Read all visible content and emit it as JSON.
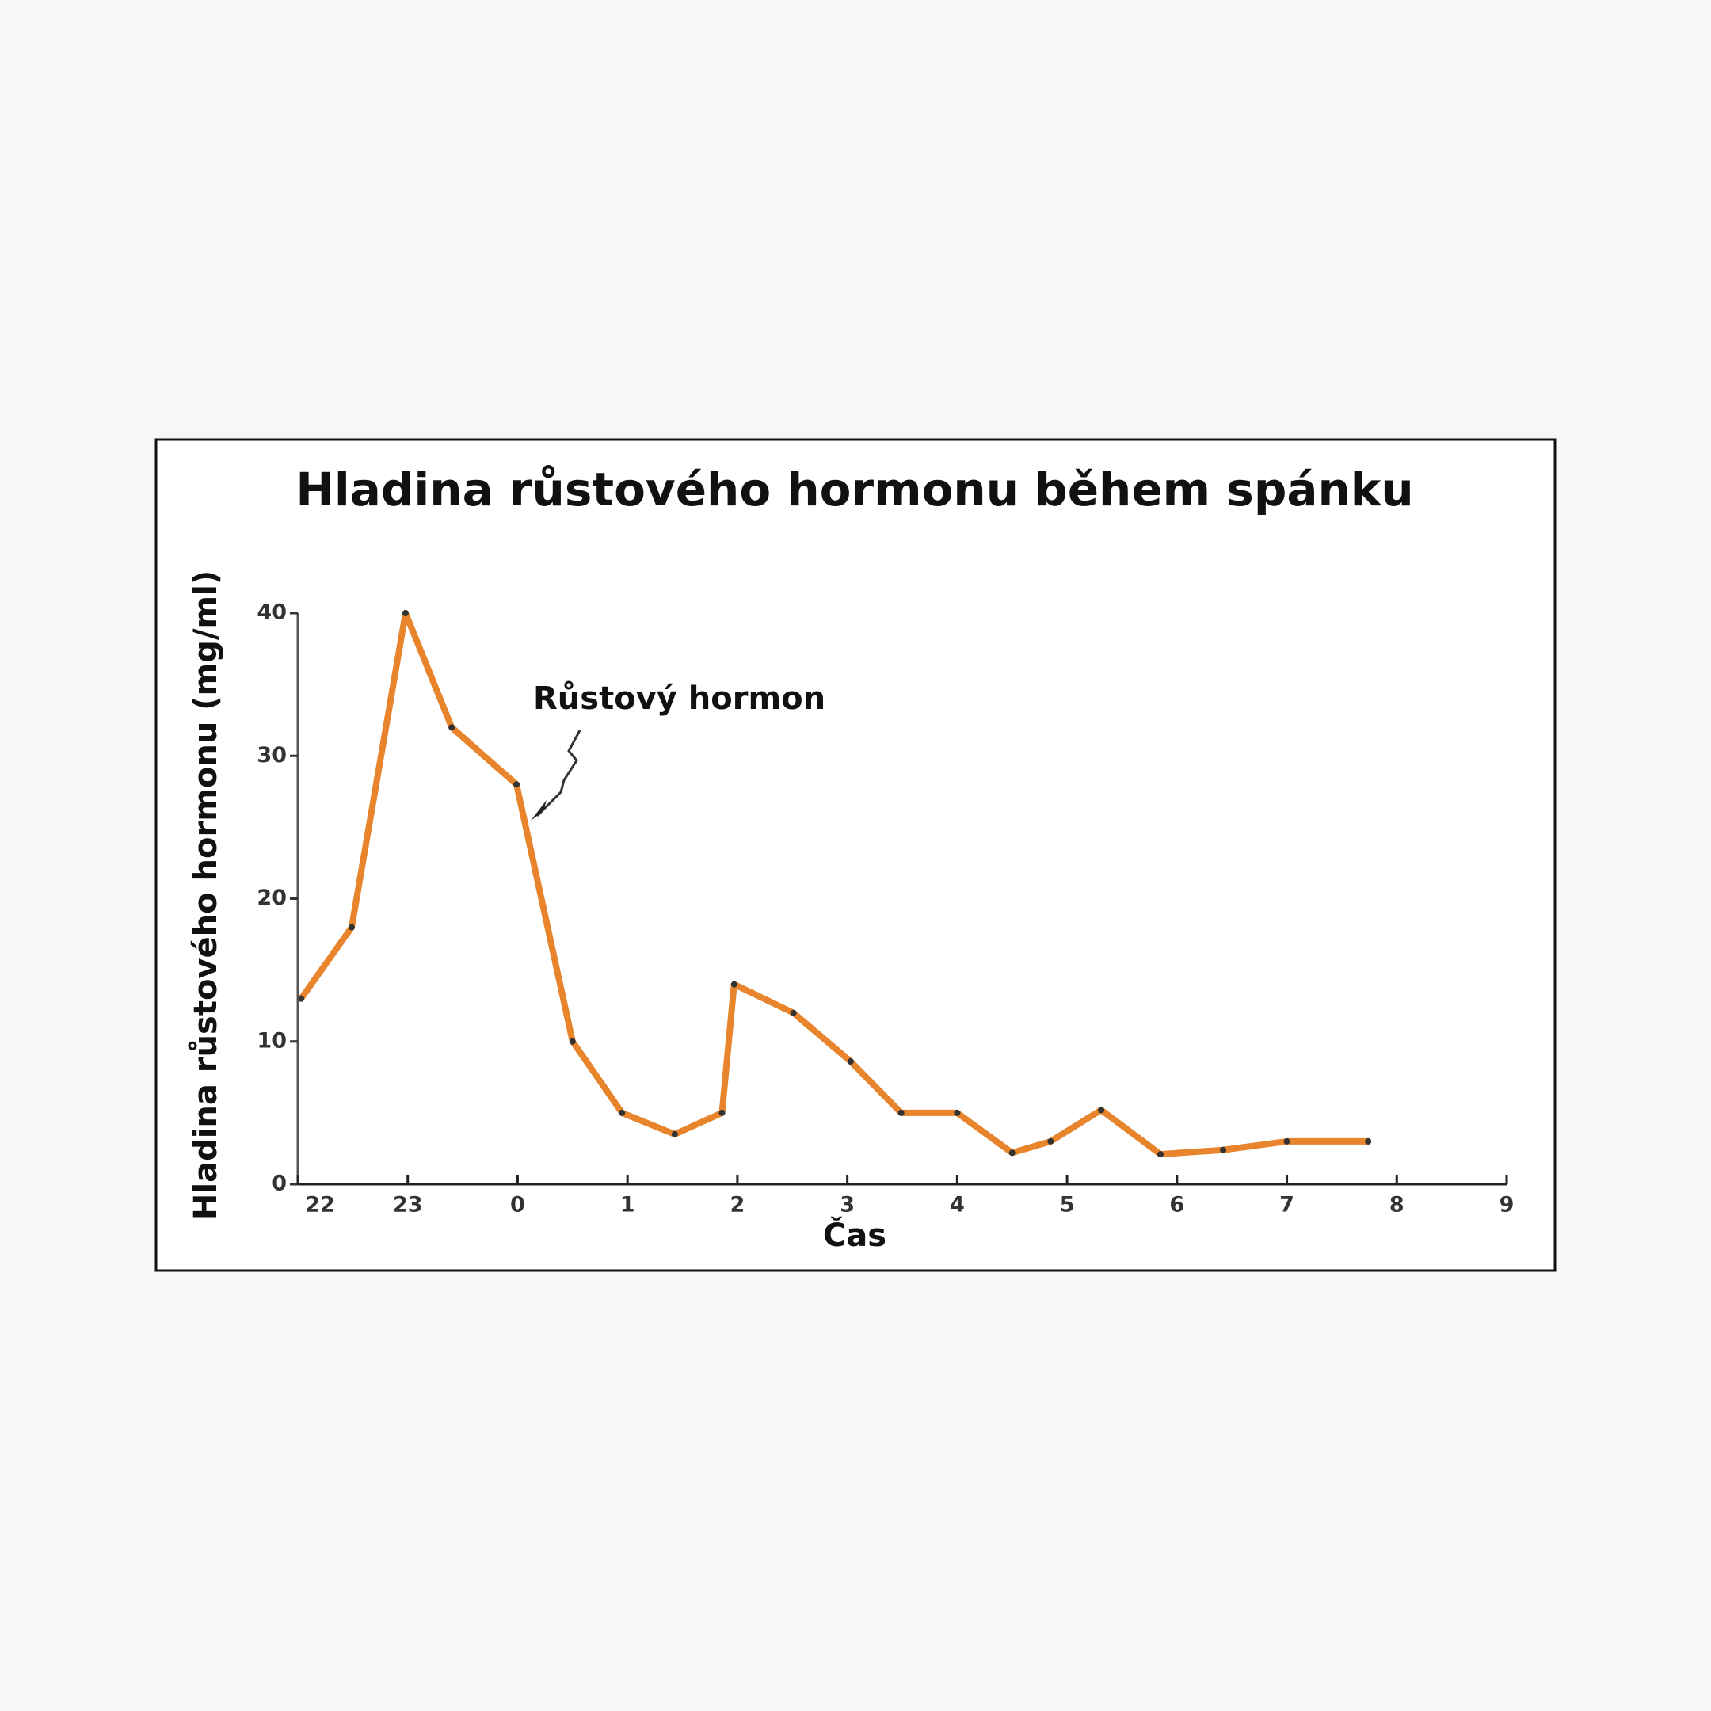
{
  "chart_data": {
    "type": "line",
    "title": "Hladina růstového hormonu během spánku",
    "x_label": "Čas",
    "y_label": "Hladina růstového hormonu (mg/ml)",
    "annotation": "Růstový hormon",
    "color": "#e8842c",
    "x": [
      22.03,
      22.49,
      22.98,
      23.4,
      23.99,
      24.5,
      24.95,
      25.43,
      25.86,
      25.97,
      26.51,
      27.03,
      27.49,
      28.0,
      28.5,
      28.85,
      29.31,
      29.85,
      30.42,
      31.0,
      31.74
    ],
    "values": [
      13,
      18,
      40,
      32,
      28,
      10,
      5,
      3.5,
      5,
      14,
      12,
      8.6,
      5,
      5,
      2.2,
      3,
      5.2,
      2.1,
      2.4,
      3,
      3
    ],
    "xlim": [
      22,
      33
    ],
    "xticks": [
      22,
      23,
      {
        "value": 24,
        "label": "0"
      },
      {
        "value": 25,
        "label": "1"
      },
      {
        "value": 26,
        "label": "2"
      },
      {
        "value": 27,
        "label": "3"
      },
      {
        "value": 28,
        "label": "4"
      },
      {
        "value": 29,
        "label": "5"
      },
      {
        "value": 30,
        "label": "6"
      },
      {
        "value": 31,
        "label": "7"
      },
      {
        "value": 32,
        "label": "8"
      },
      {
        "value": 33,
        "label": "9"
      }
    ],
    "ylim": [
      0,
      40
    ],
    "yticks": [
      0,
      10,
      20,
      30,
      40
    ],
    "grid": false
  }
}
